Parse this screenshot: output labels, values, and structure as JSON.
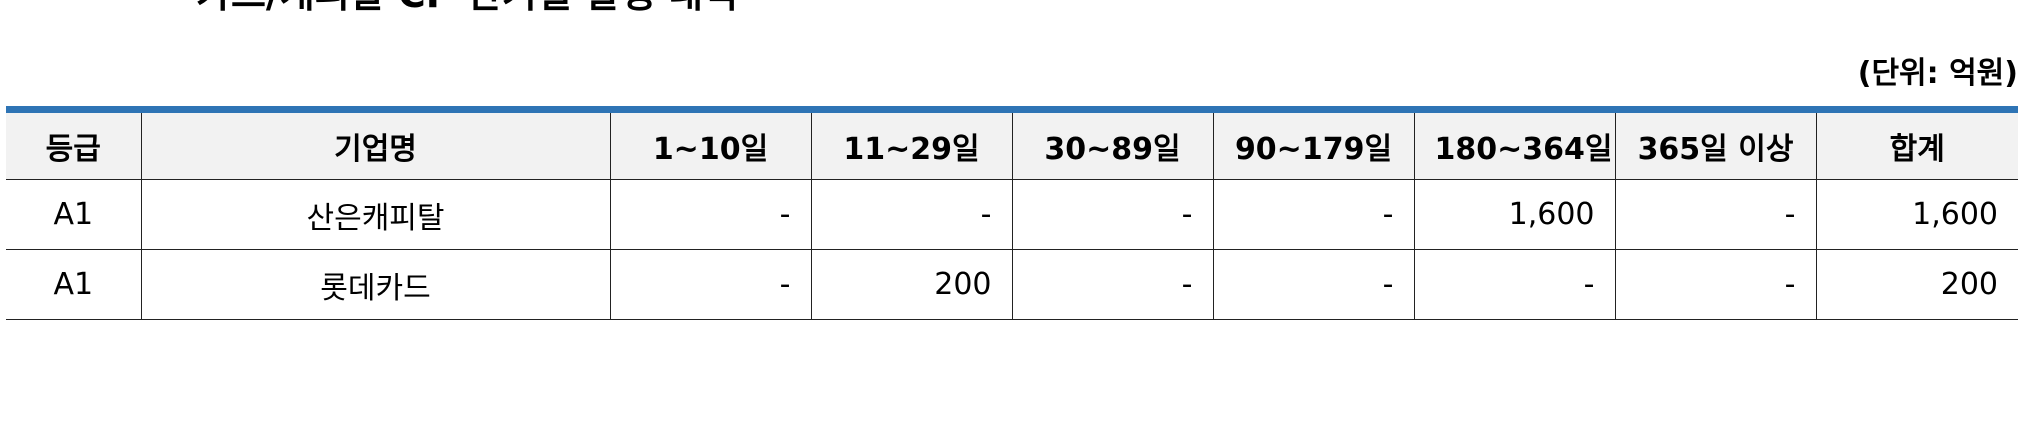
{
  "heading": {
    "text": "카드/캐피탈 CP 만기별 발행 내역"
  },
  "unit_label": "(단위: 억원)",
  "table": {
    "headers": [
      "등급",
      "기업명",
      "1~10일",
      "11~29일",
      "30~89일",
      "90~179일",
      "180~364일",
      "365일 이상",
      "합계"
    ],
    "rows": [
      [
        "A1",
        "산은캐피탈",
        "-",
        "-",
        "-",
        "-",
        "1,600",
        "-",
        "1,600"
      ],
      [
        "A1",
        "롯데카드",
        "-",
        "200",
        "-",
        "-",
        "-",
        "-",
        "200"
      ]
    ]
  },
  "colors": {
    "header_rule": "#2e74b5",
    "header_bg": "#f2f2f2"
  }
}
